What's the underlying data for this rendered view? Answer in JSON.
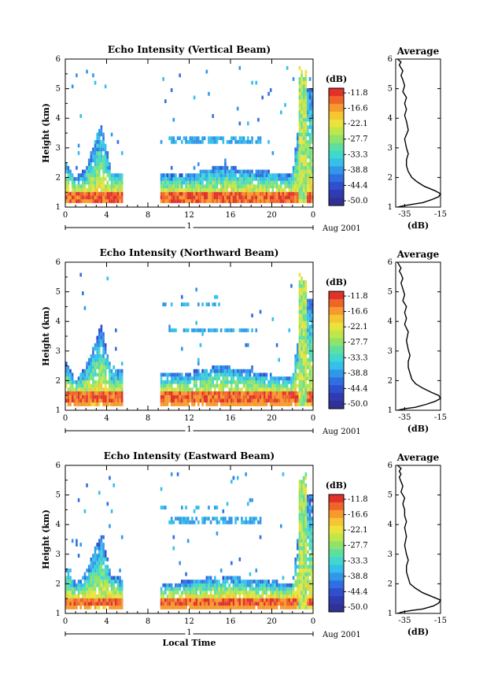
{
  "chart_data": {
    "type": "heatmap",
    "panels": [
      {
        "title": "Echo Intensity (Vertical Beam)",
        "xlabel": "",
        "ylabel": "Height (km)",
        "x_ticks": [
          "0",
          "4",
          "8",
          "12",
          "16",
          "20",
          "0"
        ],
        "y_ticks": [
          "1",
          "2",
          "3",
          "4",
          "5",
          "6"
        ],
        "xlim": [
          0,
          24
        ],
        "ylim": [
          1,
          6
        ],
        "date_axis": {
          "label": "1",
          "suffix": "Aug 2001"
        },
        "profile_layer_km": [
          1.2,
          1.5
        ],
        "echo_top_km": {
          "x": [
            0,
            1,
            2,
            3,
            3.5,
            4,
            4.5,
            5.5,
            9,
            12,
            15,
            17,
            20,
            22,
            23
          ],
          "h": [
            2.6,
            2.0,
            2.3,
            3.4,
            3.8,
            3.0,
            2.2,
            2.2,
            2.1,
            2.1,
            2.4,
            2.3,
            2.2,
            2.1,
            5.0
          ]
        },
        "colorbar": {
          "label": "(dB)",
          "levels": [
            "-11.8",
            "-16.6",
            "-22.1",
            "-27.7",
            "-33.3",
            "-38.8",
            "-44.4",
            "-50.0"
          ]
        },
        "average_profile": {
          "title": "Average",
          "xlabel": "(dB)",
          "x_ticks": [
            "-35",
            "-15"
          ],
          "y_ticks": [
            "1",
            "2",
            "3",
            "4",
            "5",
            "6"
          ],
          "xlim": [
            -40,
            -15
          ],
          "ylim": [
            1,
            6
          ],
          "x": [
            -39,
            -35,
            -30,
            -25,
            -20,
            -16,
            -15,
            -18,
            -24,
            -28,
            -31,
            -33,
            -34,
            -34,
            -33,
            -34,
            -35,
            -33,
            -34,
            -35,
            -34,
            -35,
            -34,
            -36,
            -35,
            -36,
            -37,
            -36,
            -37,
            -38,
            -37,
            -39
          ],
          "h": [
            1.0,
            1.05,
            1.1,
            1.15,
            1.25,
            1.35,
            1.45,
            1.55,
            1.7,
            1.85,
            2.0,
            2.2,
            2.4,
            2.6,
            2.8,
            3.0,
            3.3,
            3.6,
            3.9,
            4.1,
            4.3,
            4.5,
            4.7,
            4.9,
            5.1,
            5.3,
            5.45,
            5.6,
            5.7,
            5.8,
            5.9,
            6.0
          ]
        }
      },
      {
        "title": "Echo Intensity (Northward Beam)",
        "xlabel": "",
        "ylabel": "Height (km)",
        "x_ticks": [
          "0",
          "4",
          "8",
          "12",
          "16",
          "20",
          "0"
        ],
        "y_ticks": [
          "1",
          "2",
          "3",
          "4",
          "5",
          "6"
        ],
        "xlim": [
          0,
          24
        ],
        "ylim": [
          1,
          6
        ],
        "date_axis": {
          "label": "1",
          "suffix": "Aug 2001"
        },
        "profile_layer_km": [
          1.25,
          1.6
        ],
        "echo_top_km": {
          "x": [
            0,
            1,
            2,
            3,
            3.5,
            4,
            4.5,
            5.5,
            9,
            12,
            15,
            17,
            20,
            22,
            23
          ],
          "h": [
            2.7,
            2.0,
            2.5,
            3.4,
            3.9,
            3.1,
            2.4,
            2.4,
            2.2,
            2.3,
            2.5,
            2.4,
            2.2,
            2.1,
            4.8
          ]
        },
        "colorbar": {
          "label": "(dB)",
          "levels": [
            "-11.8",
            "-16.6",
            "-22.1",
            "-27.7",
            "-33.3",
            "-38.8",
            "-44.4",
            "-50.0"
          ]
        },
        "average_profile": {
          "title": "Average",
          "xlabel": "(dB)",
          "x_ticks": [
            "-35",
            "-15"
          ],
          "y_ticks": [
            "1",
            "2",
            "3",
            "4",
            "5",
            "6"
          ],
          "xlim": [
            -40,
            -15
          ],
          "ylim": [
            1,
            6
          ],
          "x": [
            -39,
            -35,
            -29,
            -23,
            -18,
            -15,
            -16,
            -20,
            -25,
            -29,
            -31,
            -32,
            -33,
            -33,
            -32,
            -33,
            -34,
            -33,
            -35,
            -34,
            -35,
            -34,
            -36,
            -35,
            -36,
            -37,
            -36,
            -37,
            -38,
            -37,
            -38,
            -39
          ],
          "h": [
            1.0,
            1.05,
            1.1,
            1.2,
            1.3,
            1.4,
            1.5,
            1.6,
            1.75,
            1.9,
            2.05,
            2.25,
            2.45,
            2.65,
            2.85,
            3.05,
            3.35,
            3.65,
            3.9,
            4.1,
            4.3,
            4.5,
            4.7,
            4.9,
            5.1,
            5.3,
            5.45,
            5.6,
            5.7,
            5.8,
            5.9,
            6.0
          ]
        }
      },
      {
        "title": "Echo Intensity (Eastward Beam)",
        "xlabel": "Local Time",
        "ylabel": "Height (km)",
        "x_ticks": [
          "0",
          "4",
          "8",
          "12",
          "16",
          "20",
          "0"
        ],
        "y_ticks": [
          "1",
          "2",
          "3",
          "4",
          "5",
          "6"
        ],
        "xlim": [
          0,
          24
        ],
        "ylim": [
          1,
          6
        ],
        "date_axis": {
          "label": "1",
          "suffix": "Aug 2001"
        },
        "profile_layer_km": [
          1.25,
          1.55
        ],
        "echo_top_km": {
          "x": [
            0,
            1,
            2,
            3,
            3.5,
            4,
            4.5,
            5.5,
            9,
            12,
            15,
            17,
            20,
            22,
            23
          ],
          "h": [
            2.6,
            2.0,
            2.4,
            3.3,
            3.6,
            3.0,
            2.3,
            2.2,
            2.0,
            2.1,
            2.3,
            2.2,
            2.1,
            2.0,
            5.0
          ]
        },
        "colorbar": {
          "label": "(dB)",
          "levels": [
            "-11.8",
            "-16.6",
            "-22.1",
            "-27.7",
            "-33.3",
            "-38.8",
            "-44.4",
            "-50.0"
          ]
        },
        "average_profile": {
          "title": "Average",
          "xlabel": "(dB)",
          "x_ticks": [
            "-35",
            "-15"
          ],
          "y_ticks": [
            "1",
            "2",
            "3",
            "4",
            "5",
            "6"
          ],
          "xlim": [
            -40,
            -15
          ],
          "ylim": [
            1,
            6
          ],
          "x": [
            -39,
            -36,
            -31,
            -25,
            -19,
            -16,
            -15,
            -19,
            -25,
            -29,
            -32,
            -33,
            -34,
            -34,
            -33,
            -34,
            -35,
            -34,
            -35,
            -34,
            -35,
            -35,
            -36,
            -35,
            -37,
            -36,
            -37,
            -38,
            -37,
            -38,
            -37,
            -39
          ],
          "h": [
            1.0,
            1.05,
            1.1,
            1.15,
            1.25,
            1.35,
            1.45,
            1.55,
            1.7,
            1.85,
            2.0,
            2.2,
            2.4,
            2.6,
            2.8,
            3.0,
            3.3,
            3.6,
            3.9,
            4.1,
            4.3,
            4.5,
            4.7,
            4.9,
            5.1,
            5.3,
            5.45,
            5.6,
            5.7,
            5.8,
            5.9,
            6.0
          ]
        }
      }
    ],
    "colors": [
      "#e0322a",
      "#f0642a",
      "#f59a2c",
      "#f6c531",
      "#e9e33c",
      "#bfe64a",
      "#8ee36a",
      "#5fdf9f",
      "#3fd8cf",
      "#35bfe9",
      "#3197ea",
      "#2f6fe1",
      "#2f4fce",
      "#303ab1",
      "#2f3294"
    ]
  }
}
